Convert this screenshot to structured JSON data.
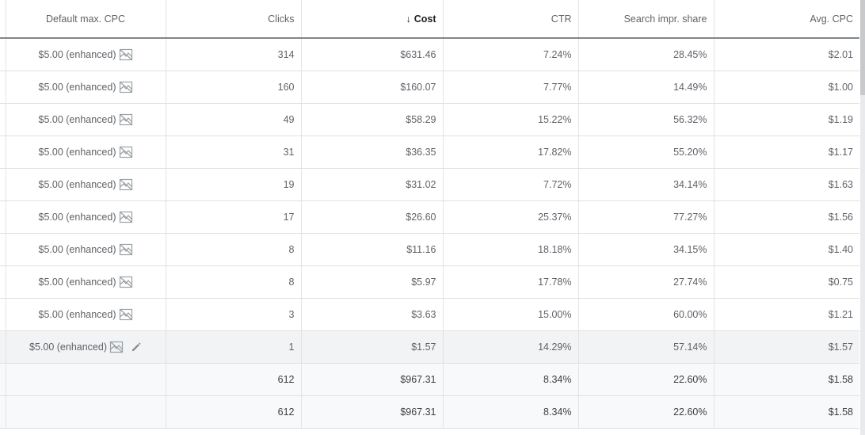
{
  "columns": {
    "max_cpc": "Default max. CPC",
    "clicks": "Clicks",
    "cost": "Cost",
    "cost_sort_arrow": "↓",
    "ctr": "CTR",
    "impr_share": "Search impr. share",
    "avg_cpc": "Avg. CPC"
  },
  "rows": [
    {
      "max_cpc": "$5.00 (enhanced)",
      "clicks": "314",
      "cost": "$631.46",
      "ctr": "7.24%",
      "impr_share": "28.45%",
      "avg_cpc": "$2.01"
    },
    {
      "max_cpc": "$5.00 (enhanced)",
      "clicks": "160",
      "cost": "$160.07",
      "ctr": "7.77%",
      "impr_share": "14.49%",
      "avg_cpc": "$1.00"
    },
    {
      "max_cpc": "$5.00 (enhanced)",
      "clicks": "49",
      "cost": "$58.29",
      "ctr": "15.22%",
      "impr_share": "56.32%",
      "avg_cpc": "$1.19"
    },
    {
      "max_cpc": "$5.00 (enhanced)",
      "clicks": "31",
      "cost": "$36.35",
      "ctr": "17.82%",
      "impr_share": "55.20%",
      "avg_cpc": "$1.17"
    },
    {
      "max_cpc": "$5.00 (enhanced)",
      "clicks": "19",
      "cost": "$31.02",
      "ctr": "7.72%",
      "impr_share": "34.14%",
      "avg_cpc": "$1.63"
    },
    {
      "max_cpc": "$5.00 (enhanced)",
      "clicks": "17",
      "cost": "$26.60",
      "ctr": "25.37%",
      "impr_share": "77.27%",
      "avg_cpc": "$1.56"
    },
    {
      "max_cpc": "$5.00 (enhanced)",
      "clicks": "8",
      "cost": "$11.16",
      "ctr": "18.18%",
      "impr_share": "34.15%",
      "avg_cpc": "$1.40"
    },
    {
      "max_cpc": "$5.00 (enhanced)",
      "clicks": "8",
      "cost": "$5.97",
      "ctr": "17.78%",
      "impr_share": "27.74%",
      "avg_cpc": "$0.75"
    },
    {
      "max_cpc": "$5.00 (enhanced)",
      "clicks": "3",
      "cost": "$3.63",
      "ctr": "15.00%",
      "impr_share": "60.00%",
      "avg_cpc": "$1.21"
    },
    {
      "max_cpc": "$5.00 (enhanced)",
      "clicks": "1",
      "cost": "$1.57",
      "ctr": "14.29%",
      "impr_share": "57.14%",
      "avg_cpc": "$1.57"
    }
  ],
  "totals": [
    {
      "clicks": "612",
      "cost": "$967.31",
      "ctr": "8.34%",
      "impr_share": "22.60%",
      "avg_cpc": "$1.58"
    },
    {
      "clicks": "612",
      "cost": "$967.31",
      "ctr": "8.34%",
      "impr_share": "22.60%",
      "avg_cpc": "$1.58"
    }
  ],
  "icons": {
    "bid_strategy": "bid-strategy-icon",
    "edit": "pencil-icon",
    "sort": "arrow-down-icon"
  },
  "colors": {
    "header_border": "#80868b",
    "row_border": "#e0e0e0",
    "hover_row": "#f1f3f4",
    "total_row": "#f8f9fa"
  }
}
